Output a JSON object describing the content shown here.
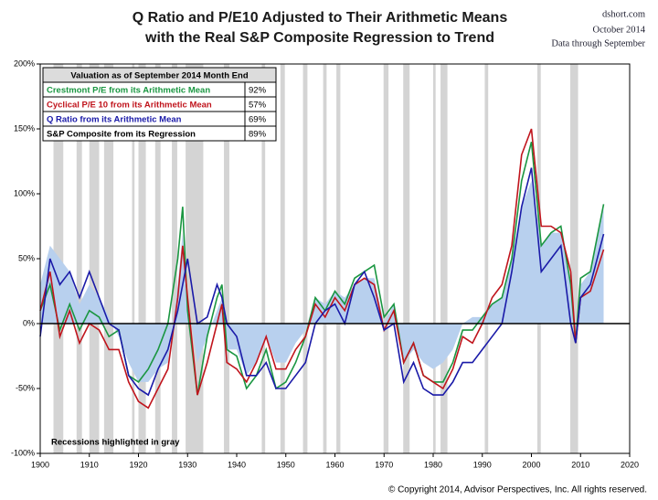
{
  "chart_data": {
    "type": "line",
    "title": "Q Ratio and P/E10 Adjusted to Their Arithmetic Means",
    "subtitle": "with the Real S&P Composite Regression to Trend",
    "source": "dshort.com",
    "date": "October 2014",
    "data_note": "Data through September",
    "recession_note": "Recessions highlighted in gray",
    "copyright": "© Copyright 2014, Advisor Perspectives, Inc. All rights reserved.",
    "table_title": "Valuation as of September 2014 Month End",
    "xlim": [
      1900,
      2020
    ],
    "xticks": [
      1900,
      1910,
      1920,
      1930,
      1940,
      1950,
      1960,
      1970,
      1980,
      1990,
      2000,
      2010,
      2020
    ],
    "ylim": [
      -100,
      200
    ],
    "yticks": [
      {
        "value": -100,
        "label": "-100%"
      },
      {
        "value": -50,
        "label": "-50%"
      },
      {
        "value": 0,
        "label": "0%"
      },
      {
        "value": 50,
        "label": "50%"
      },
      {
        "value": 100,
        "label": "100%"
      },
      {
        "value": 150,
        "label": "150%"
      },
      {
        "value": 200,
        "label": "200%"
      }
    ],
    "recession_color": "#d4d4d4",
    "recessions": [
      [
        1902.7,
        1904.7
      ],
      [
        1907.4,
        1908.5
      ],
      [
        1910,
        1912
      ],
      [
        1913,
        1914.9
      ],
      [
        1918.7,
        1919.2
      ],
      [
        1920,
        1921.5
      ],
      [
        1923.4,
        1924.5
      ],
      [
        1926.8,
        1927.9
      ],
      [
        1929.6,
        1933.2
      ],
      [
        1937.4,
        1938.5
      ],
      [
        1945.1,
        1945.8
      ],
      [
        1948.9,
        1949.8
      ],
      [
        1953.5,
        1954.4
      ],
      [
        1957.6,
        1958.3
      ],
      [
        1960.3,
        1961.1
      ],
      [
        1969.9,
        1970.9
      ],
      [
        1973.9,
        1975.2
      ],
      [
        1980,
        1980.5
      ],
      [
        1981.5,
        1982.9
      ],
      [
        1990.5,
        1991.2
      ],
      [
        2001.2,
        2001.9
      ],
      [
        2007.9,
        2009.5
      ]
    ],
    "x": [
      1900,
      1902,
      1904,
      1906,
      1908,
      1910,
      1912,
      1914,
      1916,
      1918,
      1920,
      1922,
      1924,
      1926,
      1928,
      1929,
      1930,
      1932,
      1934,
      1936,
      1937,
      1938,
      1940,
      1942,
      1944,
      1946,
      1948,
      1950,
      1952,
      1954,
      1956,
      1958,
      1960,
      1962,
      1964,
      1966,
      1968,
      1970,
      1972,
      1974,
      1976,
      1978,
      1980,
      1982,
      1984,
      1986,
      1988,
      1990,
      1992,
      1994,
      1996,
      1998,
      2000,
      2002,
      2004,
      2006,
      2008,
      2009,
      2010,
      2012,
      2014.7
    ],
    "series": [
      {
        "name": "Crestmont P/E from its Arithmetic Mean",
        "latest_label": "92%",
        "color": "#1a9641",
        "values": [
          10,
          30,
          -5,
          15,
          -5,
          10,
          5,
          -10,
          -5,
          -40,
          -45,
          -35,
          -20,
          0,
          50,
          90,
          10,
          -55,
          -10,
          20,
          30,
          -20,
          -25,
          -50,
          -40,
          -20,
          -50,
          -45,
          -30,
          -10,
          20,
          10,
          25,
          15,
          35,
          40,
          45,
          5,
          15,
          -30,
          -15,
          -40,
          -45,
          -45,
          -30,
          -5,
          -5,
          5,
          15,
          20,
          50,
          110,
          140,
          60,
          70,
          75,
          30,
          -15,
          35,
          40,
          92
        ]
      },
      {
        "name": "Cyclical P/E 10 from its Arithmetic Mean",
        "latest_label": "57%",
        "color": "#c0141c",
        "values": [
          10,
          40,
          -10,
          10,
          -15,
          0,
          -5,
          -20,
          -20,
          -45,
          -60,
          -65,
          -50,
          -35,
          20,
          60,
          20,
          -55,
          -30,
          0,
          15,
          -30,
          -35,
          -45,
          -30,
          -10,
          -35,
          -35,
          -20,
          -10,
          15,
          5,
          20,
          10,
          30,
          35,
          30,
          -5,
          10,
          -30,
          -15,
          -40,
          -45,
          -50,
          -35,
          -10,
          -15,
          0,
          20,
          30,
          60,
          130,
          150,
          75,
          75,
          70,
          40,
          -15,
          20,
          25,
          57
        ]
      },
      {
        "name": "Q Ratio from its Arithmetic Mean",
        "latest_label": "69%",
        "color": "#1a1aa8",
        "values": [
          -10,
          50,
          30,
          40,
          20,
          40,
          20,
          0,
          -5,
          -40,
          -50,
          -55,
          -35,
          -20,
          10,
          30,
          50,
          0,
          5,
          30,
          20,
          0,
          -10,
          -40,
          -40,
          -30,
          -50,
          -50,
          -40,
          -30,
          0,
          10,
          15,
          0,
          30,
          40,
          20,
          -5,
          0,
          -45,
          -30,
          -50,
          -55,
          -55,
          -45,
          -30,
          -30,
          -20,
          -10,
          0,
          40,
          90,
          120,
          40,
          50,
          60,
          0,
          -15,
          20,
          30,
          69
        ]
      },
      {
        "name": "S&P Composite from its Regression",
        "latest_label": "89%",
        "color": "#b8d0ee",
        "area": true,
        "values": [
          30,
          60,
          50,
          40,
          15,
          30,
          20,
          5,
          -10,
          -30,
          -45,
          -45,
          -35,
          -30,
          30,
          70,
          20,
          -30,
          -10,
          10,
          20,
          -20,
          -20,
          -40,
          -30,
          -10,
          -30,
          -30,
          -15,
          -5,
          20,
          15,
          25,
          20,
          30,
          35,
          35,
          0,
          15,
          -30,
          -20,
          -30,
          -35,
          -30,
          -20,
          0,
          5,
          5,
          15,
          20,
          50,
          90,
          110,
          60,
          70,
          70,
          30,
          -5,
          30,
          40,
          89
        ]
      }
    ]
  }
}
